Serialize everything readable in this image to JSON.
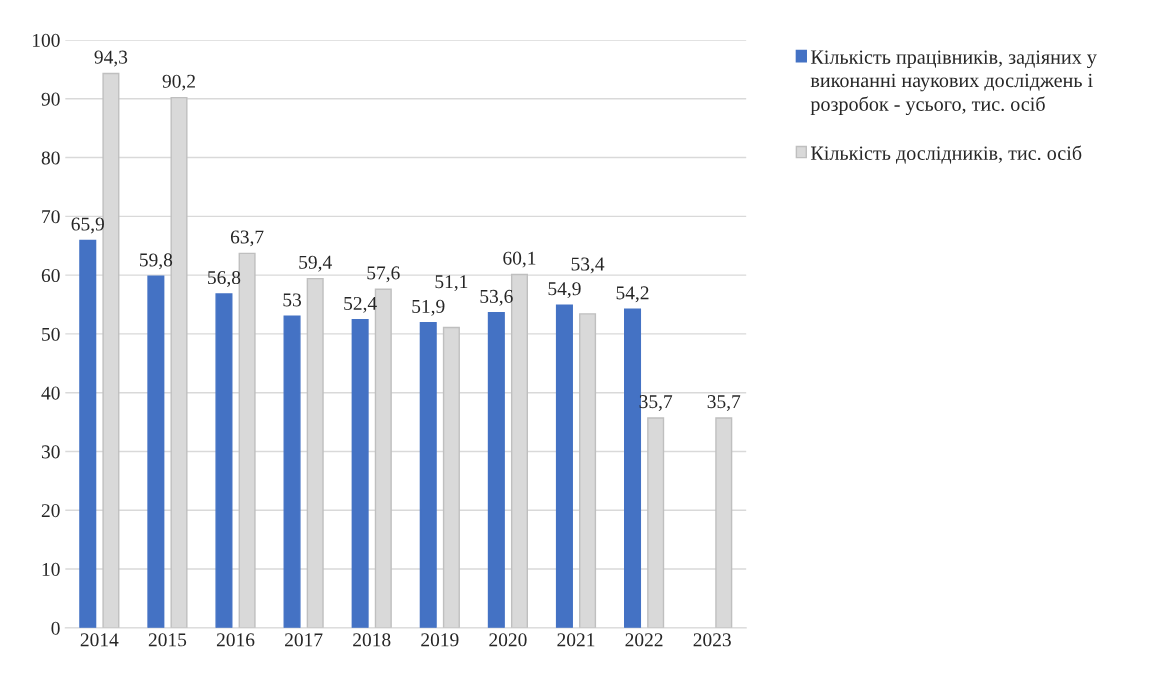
{
  "chart_data": {
    "type": "bar",
    "categories": [
      "2014",
      "2015",
      "2016",
      "2017",
      "2018",
      "2019",
      "2020",
      "2021",
      "2022",
      "2023"
    ],
    "series": [
      {
        "name": "Кількість працівників, задіяних у виконанні наукових досліджень і розробок - усього, тис. осіб",
        "color": "#4472c4",
        "values": [
          65.9,
          59.8,
          56.8,
          53,
          52.4,
          51.9,
          53.6,
          54.9,
          54.2,
          null
        ],
        "value_labels": [
          "65,9",
          "59,8",
          "56,8",
          "53",
          "52,4",
          "51,9",
          "53,6",
          "54,9",
          "54,2",
          null
        ]
      },
      {
        "name": "Кількість дослідників, тис. осіб",
        "color": "#d9d9d9",
        "values": [
          94.3,
          90.2,
          63.7,
          59.4,
          57.6,
          51.1,
          60.1,
          53.4,
          35.7,
          35.7
        ],
        "value_labels": [
          "94,3",
          "90,2",
          "63,7",
          "59,4",
          "57,6",
          "51,1",
          "60,1",
          "53,4",
          "35,7",
          "35,7"
        ]
      }
    ],
    "ylim": [
      0,
      100
    ],
    "yticks": [
      0,
      10,
      20,
      30,
      40,
      50,
      60,
      70,
      80,
      90,
      100
    ],
    "grid": "y",
    "legend": "top right"
  }
}
